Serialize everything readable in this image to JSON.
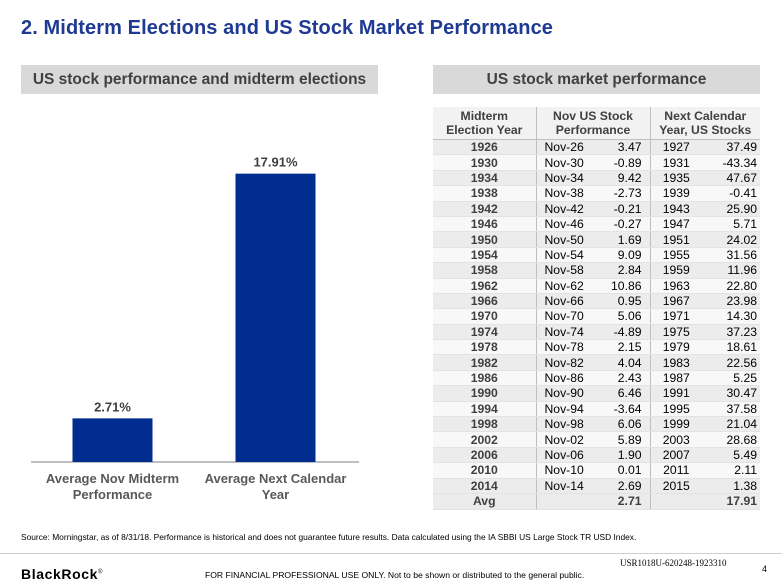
{
  "title": "2. Midterm Elections and US Stock Market Performance",
  "left_panel": {
    "header": "US stock performance and midterm elections"
  },
  "right_panel": {
    "header": "US stock market performance"
  },
  "chart_data": {
    "type": "bar",
    "categories": [
      [
        "Average Nov Midterm",
        "Performance"
      ],
      [
        "Average Next Calendar",
        "Year"
      ]
    ],
    "values": [
      2.71,
      17.91
    ],
    "value_labels": [
      "2.71%",
      "17.91%"
    ],
    "title": "US stock performance and midterm elections",
    "ylim": [
      0,
      20
    ],
    "grid": false,
    "bar_color": "#002d8f"
  },
  "table": {
    "headers": [
      [
        "Midterm",
        "Election Year"
      ],
      [
        "Nov US Stock",
        "Performance"
      ],
      [
        "Next Calendar",
        "Year, US Stocks"
      ]
    ],
    "rows": [
      {
        "year": "1926",
        "nov": "Nov-26",
        "perf": "3.47",
        "next": "1927",
        "ret": "37.49"
      },
      {
        "year": "1930",
        "nov": "Nov-30",
        "perf": "-0.89",
        "next": "1931",
        "ret": "-43.34"
      },
      {
        "year": "1934",
        "nov": "Nov-34",
        "perf": "9.42",
        "next": "1935",
        "ret": "47.67"
      },
      {
        "year": "1938",
        "nov": "Nov-38",
        "perf": "-2.73",
        "next": "1939",
        "ret": "-0.41"
      },
      {
        "year": "1942",
        "nov": "Nov-42",
        "perf": "-0.21",
        "next": "1943",
        "ret": "25.90"
      },
      {
        "year": "1946",
        "nov": "Nov-46",
        "perf": "-0.27",
        "next": "1947",
        "ret": "5.71"
      },
      {
        "year": "1950",
        "nov": "Nov-50",
        "perf": "1.69",
        "next": "1951",
        "ret": "24.02"
      },
      {
        "year": "1954",
        "nov": "Nov-54",
        "perf": "9.09",
        "next": "1955",
        "ret": "31.56"
      },
      {
        "year": "1958",
        "nov": "Nov-58",
        "perf": "2.84",
        "next": "1959",
        "ret": "11.96"
      },
      {
        "year": "1962",
        "nov": "Nov-62",
        "perf": "10.86",
        "next": "1963",
        "ret": "22.80"
      },
      {
        "year": "1966",
        "nov": "Nov-66",
        "perf": "0.95",
        "next": "1967",
        "ret": "23.98"
      },
      {
        "year": "1970",
        "nov": "Nov-70",
        "perf": "5.06",
        "next": "1971",
        "ret": "14.30"
      },
      {
        "year": "1974",
        "nov": "Nov-74",
        "perf": "-4.89",
        "next": "1975",
        "ret": "37.23"
      },
      {
        "year": "1978",
        "nov": "Nov-78",
        "perf": "2.15",
        "next": "1979",
        "ret": "18.61"
      },
      {
        "year": "1982",
        "nov": "Nov-82",
        "perf": "4.04",
        "next": "1983",
        "ret": "22.56"
      },
      {
        "year": "1986",
        "nov": "Nov-86",
        "perf": "2.43",
        "next": "1987",
        "ret": "5.25"
      },
      {
        "year": "1990",
        "nov": "Nov-90",
        "perf": "6.46",
        "next": "1991",
        "ret": "30.47"
      },
      {
        "year": "1994",
        "nov": "Nov-94",
        "perf": "-3.64",
        "next": "1995",
        "ret": "37.58"
      },
      {
        "year": "1998",
        "nov": "Nov-98",
        "perf": "6.06",
        "next": "1999",
        "ret": "21.04"
      },
      {
        "year": "2002",
        "nov": "Nov-02",
        "perf": "5.89",
        "next": "2003",
        "ret": "28.68"
      },
      {
        "year": "2006",
        "nov": "Nov-06",
        "perf": "1.90",
        "next": "2007",
        "ret": "5.49"
      },
      {
        "year": "2010",
        "nov": "Nov-10",
        "perf": "0.01",
        "next": "2011",
        "ret": "2.11"
      },
      {
        "year": "2014",
        "nov": "Nov-14",
        "perf": "2.69",
        "next": "2015",
        "ret": "1.38"
      }
    ],
    "avg": {
      "label": "Avg",
      "perf": "2.71",
      "ret": "17.91"
    }
  },
  "source": "Source: Morningstar, as of 8/31/18. Performance is historical and does not guarantee future results. Data calculated using the IA SBBI US Large Stock TR USD Index.",
  "footer": {
    "logo": "BlackRock",
    "logo_mark": "®",
    "disclaimer": "FOR FINANCIAL PROFESSIONAL USE ONLY.  Not to be shown or distributed to the general public.",
    "code": "USR1018U-620248-1923310",
    "page": "4"
  }
}
